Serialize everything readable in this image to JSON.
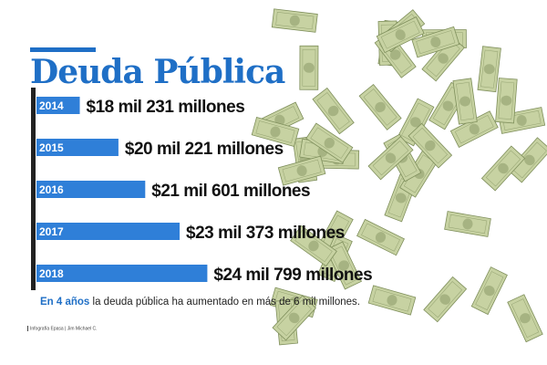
{
  "title": "Deuda Pública",
  "note": {
    "lead": "En 4 años",
    "text": "la deuda pública ha aumentado  en más de 6 mil millones."
  },
  "credit": "Infografía Epasa | Jim Michael C.",
  "colors": {
    "accent": "#1f6fc6",
    "bar": "#2f7fd8",
    "year_text": "#ffffff",
    "value_text": "#111111",
    "banknote": "#c7d2a2",
    "banknote_dark": "#7f8f5c"
  },
  "chart_data": {
    "type": "bar",
    "orientation": "horizontal",
    "title": "Deuda Pública",
    "categories": [
      "2014",
      "2015",
      "2016",
      "2017",
      "2018"
    ],
    "values": [
      18231,
      20221,
      21601,
      23373,
      24799
    ],
    "value_labels": [
      "$18 mil 231  millones",
      "$20 mil  221 millones",
      "$21 mil 601 millones",
      "$23 mil 373 millones",
      "$24 mil  799 millones"
    ],
    "units": "millones de dólares",
    "grid": false,
    "legend": "none"
  }
}
